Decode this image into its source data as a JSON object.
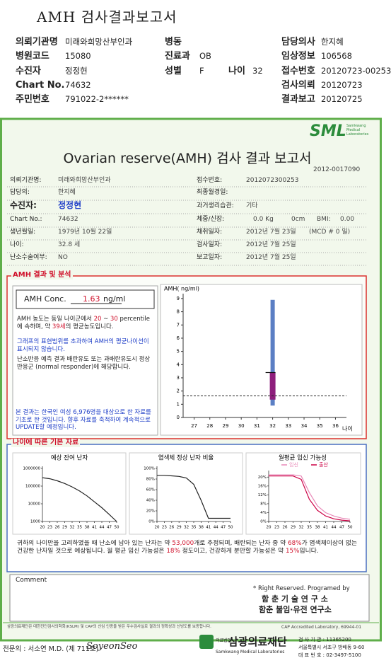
{
  "header": {
    "title": "AMH 검사결과보고서",
    "fields": [
      {
        "label": "의뢰기관명",
        "value": "미래와희망산부인과"
      },
      {
        "label": "병동"
      },
      {
        "label": "담당의사",
        "value": "한지혜"
      },
      {
        "label": "병원코드",
        "value": "15080"
      },
      {
        "label": "진료과",
        "value": "OB"
      },
      {
        "label": "임상정보",
        "value": "106568"
      },
      {
        "label": "수진자",
        "value": "정정현"
      },
      {
        "label": "성별",
        "value": "F"
      },
      {
        "label": "나이",
        "value": "32"
      },
      {
        "label": "접수번호",
        "value": "20120723-00253"
      },
      {
        "label": "Chart No.",
        "value": "74632"
      },
      {
        "label": "검사의뢰",
        "value": "20120723"
      },
      {
        "label": "주민번호",
        "value": "791022-2******"
      },
      {
        "label": "결과보고",
        "value": "20120725"
      }
    ]
  },
  "report": {
    "logo": "SML",
    "logo_sub": [
      "Samkwang",
      "Medical",
      "Laboratories"
    ],
    "title": "Ovarian reserve(AMH) 검사 결과 보고서",
    "number": "2012-0017090",
    "patient_left": [
      {
        "label": "의뢰기관명:",
        "value": "미래와희망산부인과"
      },
      {
        "label": "담당의:",
        "value": "한지혜"
      },
      {
        "label": "수진자:",
        "value": "정정현"
      },
      {
        "label": "Chart No.:",
        "value": "74632"
      },
      {
        "label": "생년월일:",
        "value": "1979년 10월 22일"
      },
      {
        "label": "나이:",
        "value": "32.8 세"
      },
      {
        "label": "난소수술여부:",
        "value": "NO"
      }
    ],
    "patient_right": [
      {
        "label": "접수번호:",
        "value": "2012072300253"
      },
      {
        "label": "최종월경일:"
      },
      {
        "label": "과거생리습관:",
        "value": "기타"
      },
      {
        "label": "체중/신장:",
        "value": [
          "0.0 Kg",
          "0cm",
          "BMI:",
          "0.00"
        ]
      },
      {
        "label": "채취일자:",
        "value": [
          "2012년 7월 23일",
          "(MCD #  0 일)"
        ]
      },
      {
        "label": "검사일자:",
        "value": "2012년 7월 25일"
      },
      {
        "label": "보고일자:",
        "value": "2012년 7월 25일"
      }
    ]
  },
  "amh": {
    "heading": "AMH 결과 및 분석",
    "conc_label": "AMH Conc.",
    "value": 1.63,
    "unit": "ng/ml",
    "p1": [
      "AMH 농도는 동일 나이군에서 ",
      "20",
      " ~ ",
      "30",
      " percentile에 속하며, 약 ",
      "39세",
      "의 평균농도입니다."
    ],
    "p2": "그래프의 표현범위를 초과하여 AMH의 평균나이선이 표시되지 않습니다.",
    "p3": "난소반응 예측 결과 배란유도 또는 과배란유도시 정상반응군 (normal responder)에 해당합니다.",
    "p4": "본 결과는 한국인 여성 6,976명을 대상으로 한 자료를 기초로 한 것입니다. 향후 자료를 축적하여 계속적으로 UPDATE할 예정입니다.",
    "chart": {
      "type": "range",
      "y_label": "AMH( ng/ml)",
      "x_label": "나이",
      "ylim": [
        0,
        9.37
      ],
      "yticks": [
        0,
        1,
        2,
        3,
        4,
        5,
        6,
        7,
        8,
        9
      ],
      "xlim": [
        26.3,
        36.7
      ],
      "xticks": [
        27,
        28,
        29,
        30,
        31,
        32,
        33,
        34,
        35,
        36
      ],
      "x": 32,
      "range": [
        0.9,
        8.9
      ],
      "normal": [
        1.35,
        3.4
      ],
      "range_color": "#5b7fc4",
      "normal_color": "#8e1f7c"
    }
  },
  "basic": {
    "heading": "나이에 따른 기본 자료",
    "charts": [
      {
        "type": "line",
        "title": "예상 잔여 난자",
        "log": true,
        "ylim": [
          1000,
          1000000
        ],
        "yticks": [
          1000,
          10000,
          100000,
          1000000
        ],
        "xlim": [
          20,
          50
        ],
        "xticks": [
          20,
          23,
          26,
          29,
          32,
          35,
          38,
          41,
          44,
          47,
          50
        ],
        "x": [
          20,
          23,
          26,
          29,
          32,
          35,
          38,
          41,
          44,
          47,
          50
        ],
        "series": [
          {
            "color": "#222222",
            "values": [
              300000,
              260000,
              200000,
              140000,
              90000,
              53000,
              28000,
              13000,
              6000,
              2500,
              1000
            ]
          }
        ]
      },
      {
        "type": "line",
        "title": "염색체 정상 난자 비율",
        "ylim": [
          0,
          100
        ],
        "yticks": [
          {
            "value": 0,
            "label": "0%"
          },
          {
            "value": 20,
            "label": "20%"
          },
          {
            "value": 40,
            "label": "40%"
          },
          {
            "value": 60,
            "label": "60%"
          },
          {
            "value": 80,
            "label": "80%"
          },
          {
            "value": 100,
            "label": "100%"
          }
        ],
        "xlim": [
          20,
          50
        ],
        "xticks": [
          20,
          23,
          26,
          29,
          32,
          35,
          38,
          41,
          44,
          47,
          50
        ],
        "x": [
          20,
          23,
          26,
          29,
          32,
          35,
          38,
          41,
          44,
          47,
          50
        ],
        "series": [
          {
            "color": "#222222",
            "values": [
              87,
              87,
              86,
              85,
              82,
              70,
              40,
              6,
              6,
              6,
              6
            ]
          }
        ]
      },
      {
        "type": "line",
        "title": "월평균 임신 가능성",
        "ylim": [
          0,
          22
        ],
        "yticks": [
          {
            "value": 0,
            "label": "0%"
          },
          {
            "value": 4,
            "label": "4%"
          },
          {
            "value": 8,
            "label": "8%"
          },
          {
            "value": 12,
            "label": "12%"
          },
          {
            "value": 16,
            "label": "16%"
          },
          {
            "value": 20,
            "label": "20%"
          }
        ],
        "xlim": [
          20,
          50
        ],
        "xticks": [
          20,
          23,
          26,
          29,
          32,
          35,
          38,
          41,
          44,
          47,
          50
        ],
        "x": [
          20,
          23,
          26,
          29,
          32,
          35,
          38,
          41,
          44,
          47,
          50
        ],
        "series": [
          {
            "name": "임신",
            "color": "#e889b8",
            "values": [
              21,
              21,
              21,
              21,
              20.5,
              13,
              7,
              4,
              2.5,
              1.5,
              1
            ]
          },
          {
            "name": "출산",
            "color": "#cc0044",
            "values": [
              20.5,
              20.5,
              20.5,
              20.5,
              19,
              10,
              5,
              2.5,
              1.2,
              0.6,
              0.3
            ]
          }
        ]
      }
    ],
    "summary": [
      "귀하의 나이만을 고려하였을 때 난소에 남아 있는 난자는 약 ",
      "53,000",
      "개로 추정되며, 배란되는 난자 중 약 ",
      "68%",
      "가 염색체이상이 없는 건강한 난자일 것으로 예상됩니다. 월 평균 임신 가능성은 ",
      "18%",
      " 정도이고, 건강하게 분만할 가능성은 약 ",
      "15%",
      "입니다."
    ]
  },
  "comment": "Comment",
  "credits": [
    "* Right Reserved. Programed by",
    "함 춘 기 술 연 구 소",
    "함춘 불임·유전 연구소"
  ],
  "footer": {
    "note": "삼광의료재단은 대한진단검사의학회(KSLM) 및 CAP의 신임 인증을 받은 우수검사실로 결과의 정확성과 신빙도를 보증합니다.",
    "cap": "CAP  Accredited  Laboratory,  69944-01",
    "doctor": "전문의 : 서소연 M.D. (제 711호)",
    "signature": "SoyeonSeo",
    "org_prefix": "의료법인",
    "org": "삼광의료재단",
    "org_en": "Samkwang Medical Laboratories",
    "contact": [
      "검 사 기 관 : 11365200",
      "서울특별시 서초구 방배동 9-60",
      "대 표 번 호 : 02-3497-5100"
    ]
  }
}
